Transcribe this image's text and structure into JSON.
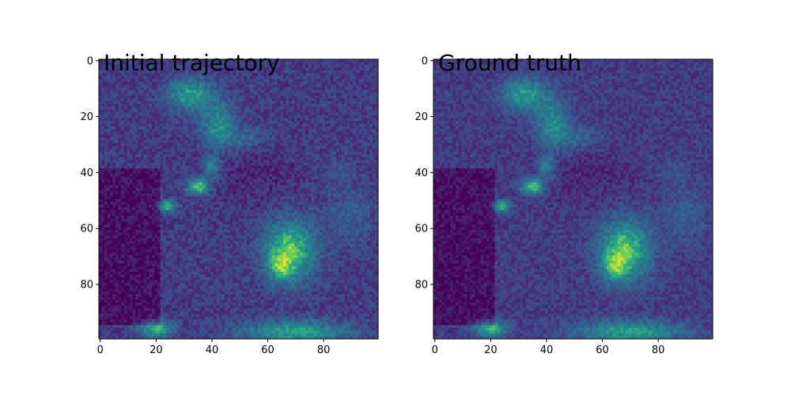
{
  "chart_data": [
    {
      "type": "heatmap",
      "title": "Initial trajectory",
      "xlim": [
        0,
        99
      ],
      "ylim": [
        99,
        0
      ],
      "x_ticks": [
        0,
        20,
        40,
        60,
        80
      ],
      "y_ticks": [
        0,
        20,
        40,
        60,
        80
      ],
      "grid": false,
      "colormap": "viridis",
      "image_size": [
        100,
        100
      ]
    },
    {
      "type": "heatmap",
      "title": "Ground truth",
      "xlim": [
        0,
        99
      ],
      "ylim": [
        99,
        0
      ],
      "x_ticks": [
        0,
        20,
        40,
        60,
        80
      ],
      "y_ticks": [
        0,
        20,
        40,
        60,
        80
      ],
      "grid": false,
      "colormap": "viridis",
      "image_size": [
        100,
        100
      ]
    }
  ]
}
